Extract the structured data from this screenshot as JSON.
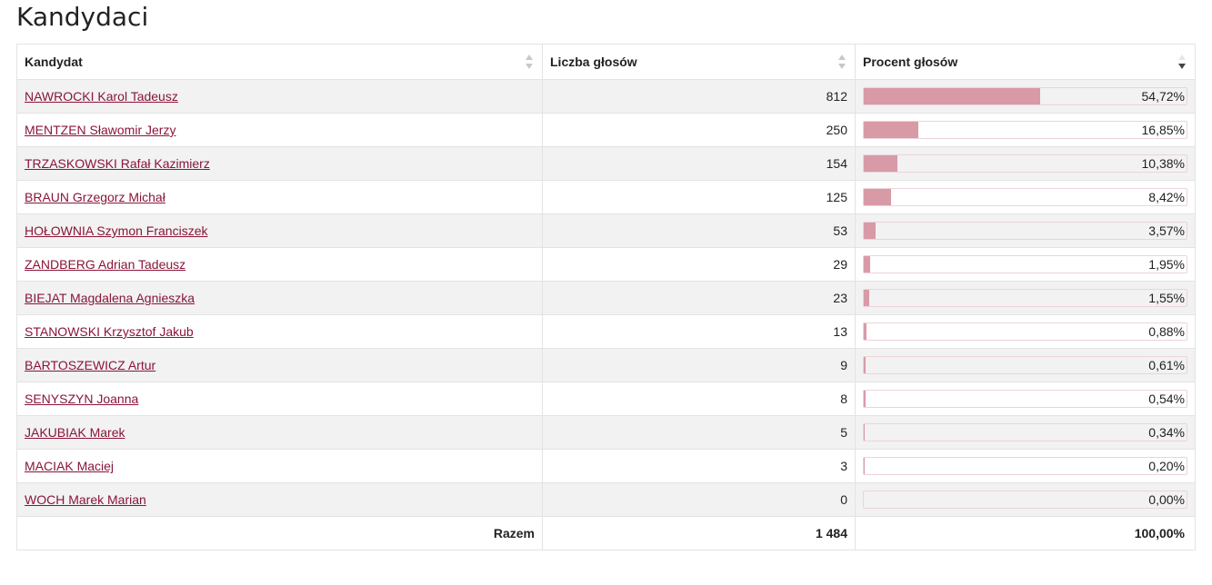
{
  "title": "Kandydaci",
  "columns": {
    "candidate": "Kandydat",
    "votes": "Liczba głosów",
    "percent": "Procent głosów"
  },
  "sort": {
    "column": "percent",
    "direction": "descending"
  },
  "colors": {
    "link": "#8a1538",
    "bar": "#d99aa7",
    "bar_border": "#ecd3da",
    "row_alt": "#f2f2f2"
  },
  "rows": [
    {
      "name": "NAWROCKI Karol Tadeusz",
      "votes": "812",
      "percent": "54,72%",
      "share": 54.72
    },
    {
      "name": "MENTZEN Sławomir Jerzy",
      "votes": "250",
      "percent": "16,85%",
      "share": 16.85
    },
    {
      "name": "TRZASKOWSKI Rafał Kazimierz",
      "votes": "154",
      "percent": "10,38%",
      "share": 10.38
    },
    {
      "name": "BRAUN Grzegorz Michał",
      "votes": "125",
      "percent": "8,42%",
      "share": 8.42
    },
    {
      "name": "HOŁOWNIA Szymon Franciszek",
      "votes": "53",
      "percent": "3,57%",
      "share": 3.57
    },
    {
      "name": "ZANDBERG Adrian Tadeusz",
      "votes": "29",
      "percent": "1,95%",
      "share": 1.95
    },
    {
      "name": "BIEJAT Magdalena Agnieszka",
      "votes": "23",
      "percent": "1,55%",
      "share": 1.55
    },
    {
      "name": "STANOWSKI Krzysztof Jakub",
      "votes": "13",
      "percent": "0,88%",
      "share": 0.88
    },
    {
      "name": "BARTOSZEWICZ Artur",
      "votes": "9",
      "percent": "0,61%",
      "share": 0.61
    },
    {
      "name": "SENYSZYN Joanna",
      "votes": "8",
      "percent": "0,54%",
      "share": 0.54
    },
    {
      "name": "JAKUBIAK Marek",
      "votes": "5",
      "percent": "0,34%",
      "share": 0.34
    },
    {
      "name": "MACIAK Maciej",
      "votes": "3",
      "percent": "0,20%",
      "share": 0.2
    },
    {
      "name": "WOCH Marek Marian",
      "votes": "0",
      "percent": "0,00%",
      "share": 0.0
    }
  ],
  "total": {
    "label": "Razem",
    "votes": "1 484",
    "percent": "100,00%"
  }
}
